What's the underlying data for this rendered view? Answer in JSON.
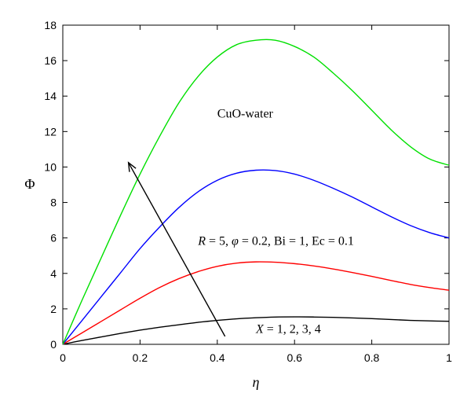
{
  "chart_data": {
    "type": "line",
    "title": "",
    "xlabel": "η",
    "ylabel": "Φ",
    "xlim": [
      0,
      1
    ],
    "ylim": [
      0,
      18
    ],
    "xticks": [
      0,
      0.2,
      0.4,
      0.6,
      0.8,
      1
    ],
    "xtick_labels": [
      "0",
      "0.2",
      "0.4",
      "0.6",
      "0.8",
      "1"
    ],
    "yticks": [
      0,
      2,
      4,
      6,
      8,
      10,
      12,
      14,
      16,
      18
    ],
    "ytick_labels": [
      "0",
      "2",
      "4",
      "6",
      "8",
      "10",
      "12",
      "14",
      "16",
      "18"
    ],
    "grid": false,
    "x": [
      0,
      0.05,
      0.1,
      0.15,
      0.2,
      0.25,
      0.3,
      0.35,
      0.4,
      0.45,
      0.5,
      0.55,
      0.6,
      0.65,
      0.7,
      0.75,
      0.8,
      0.85,
      0.9,
      0.95,
      1.0
    ],
    "series": [
      {
        "color": "#000000",
        "values": [
          0,
          0.22,
          0.42,
          0.62,
          0.8,
          0.96,
          1.1,
          1.24,
          1.35,
          1.44,
          1.5,
          1.54,
          1.55,
          1.54,
          1.52,
          1.49,
          1.45,
          1.4,
          1.35,
          1.32,
          1.3
        ]
      },
      {
        "color": "#ff0000",
        "values": [
          0,
          0.65,
          1.3,
          1.95,
          2.6,
          3.2,
          3.7,
          4.1,
          4.4,
          4.58,
          4.65,
          4.63,
          4.55,
          4.42,
          4.25,
          4.05,
          3.83,
          3.6,
          3.38,
          3.2,
          3.05
        ]
      },
      {
        "color": "#0000ff",
        "values": [
          0,
          1.35,
          2.7,
          4.05,
          5.4,
          6.6,
          7.7,
          8.6,
          9.25,
          9.65,
          9.82,
          9.8,
          9.6,
          9.25,
          8.8,
          8.3,
          7.75,
          7.2,
          6.7,
          6.3,
          6.0
        ]
      },
      {
        "color": "#00e000",
        "values": [
          0,
          2.5,
          4.9,
          7.3,
          9.6,
          11.7,
          13.6,
          15.1,
          16.2,
          16.9,
          17.15,
          17.15,
          16.8,
          16.2,
          15.3,
          14.3,
          13.2,
          12.1,
          11.15,
          10.45,
          10.1
        ]
      }
    ],
    "annotations": [
      {
        "text": "CuO-water",
        "x": 0.4,
        "y": 12.8
      },
      {
        "text_parts": [
          "R",
          " = 5, ",
          "φ",
          " = 0.2, Bi = 1, Ec = 0.1"
        ],
        "x": 0.35,
        "y": 5.6
      },
      {
        "text_parts": [
          "X",
          " = 1, 2, 3, 4"
        ],
        "x": 0.5,
        "y": 0.65
      }
    ],
    "arrow": {
      "from": [
        0.42,
        0.45
      ],
      "to": [
        0.17,
        10.25
      ]
    }
  }
}
